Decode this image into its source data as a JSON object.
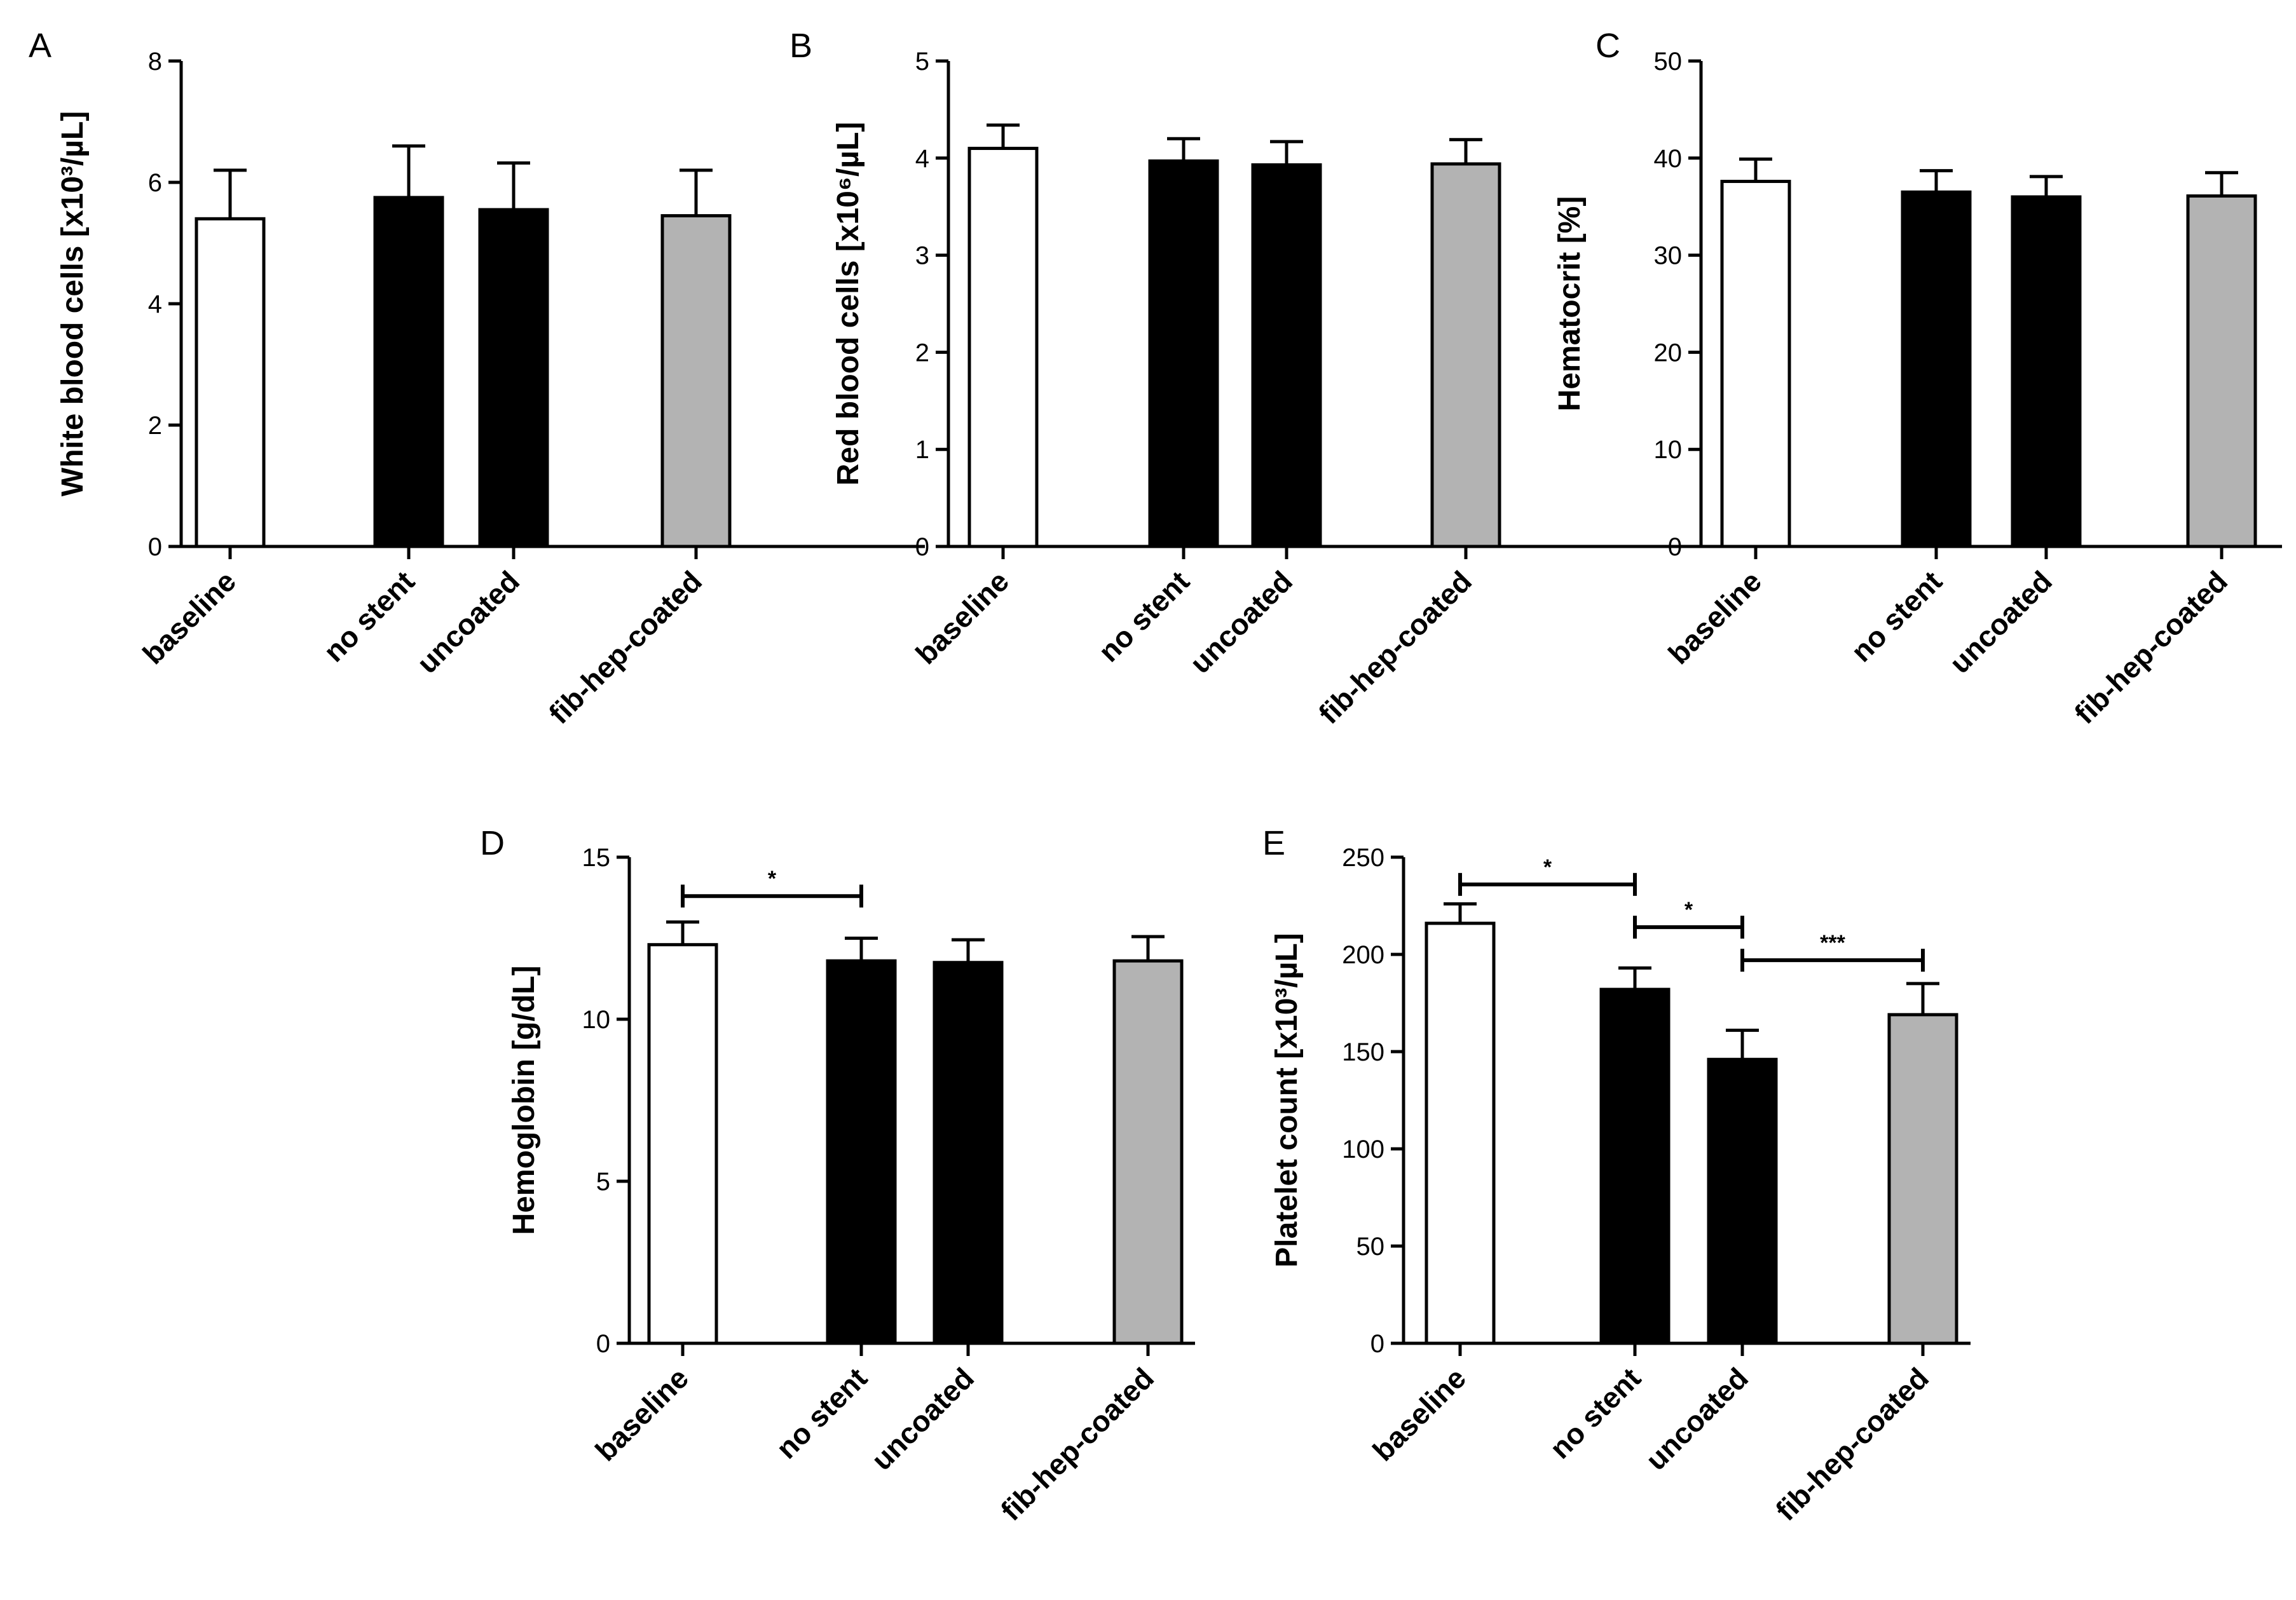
{
  "colors": {
    "baseline": "#ffffff",
    "no stent": "#000000",
    "uncoated": "#000000",
    "fib-hep-coated": "#b3b3b3"
  },
  "chart_data": [
    {
      "panel": "A",
      "type": "bar",
      "categories": [
        "baseline",
        "no stent",
        "uncoated",
        "fib-hep-coated"
      ],
      "values": [
        5.4,
        5.75,
        5.55,
        5.45
      ],
      "errors": [
        0.8,
        0.85,
        0.77,
        0.75
      ],
      "ylabel": "White blood cells  [x10³/µL]",
      "ylim": [
        0,
        8
      ],
      "yticks": [
        0,
        2,
        4,
        6,
        8
      ],
      "significance": []
    },
    {
      "panel": "B",
      "type": "bar",
      "categories": [
        "baseline",
        "no stent",
        "uncoated",
        "fib-hep-coated"
      ],
      "values": [
        4.1,
        3.97,
        3.93,
        3.94
      ],
      "errors": [
        0.24,
        0.23,
        0.24,
        0.25
      ],
      "ylabel": "Red blood cells [x10⁶/µL]",
      "ylim": [
        0,
        5
      ],
      "yticks": [
        0,
        1,
        2,
        3,
        4,
        5
      ],
      "significance": []
    },
    {
      "panel": "C",
      "type": "bar",
      "categories": [
        "baseline",
        "no stent",
        "uncoated",
        "fib-hep-coated"
      ],
      "values": [
        37.6,
        36.5,
        36.0,
        36.1
      ],
      "errors": [
        2.3,
        2.2,
        2.1,
        2.4
      ],
      "ylabel": "Hematocrit [%]",
      "ylim": [
        0,
        50
      ],
      "yticks": [
        0,
        10,
        20,
        30,
        40,
        50
      ],
      "significance": []
    },
    {
      "panel": "D",
      "type": "bar",
      "categories": [
        "baseline",
        "no stent",
        "uncoated",
        "fib-hep-coated"
      ],
      "values": [
        12.3,
        11.8,
        11.75,
        11.8
      ],
      "errors": [
        0.7,
        0.7,
        0.7,
        0.75
      ],
      "ylabel": "Hemoglobin [g/dL]",
      "ylim": [
        0,
        15
      ],
      "yticks": [
        0,
        5,
        10,
        15
      ],
      "significance": [
        {
          "from": 0,
          "to": 1,
          "y": 13.8,
          "label": "*"
        }
      ]
    },
    {
      "panel": "E",
      "type": "bar",
      "categories": [
        "baseline",
        "no stent",
        "uncoated",
        "fib-hep-coated"
      ],
      "values": [
        216,
        182,
        146,
        169
      ],
      "errors": [
        10,
        11,
        15,
        16
      ],
      "ylabel": "Platelet count [x10³/µL]",
      "ylim": [
        0,
        250
      ],
      "yticks": [
        0,
        50,
        100,
        150,
        200,
        250
      ],
      "significance": [
        {
          "from": 0,
          "to": 1,
          "y": 236,
          "label": "*"
        },
        {
          "from": 1,
          "to": 2,
          "y": 214,
          "label": "*"
        },
        {
          "from": 2,
          "to": 3,
          "y": 197,
          "label": "***"
        }
      ]
    }
  ]
}
